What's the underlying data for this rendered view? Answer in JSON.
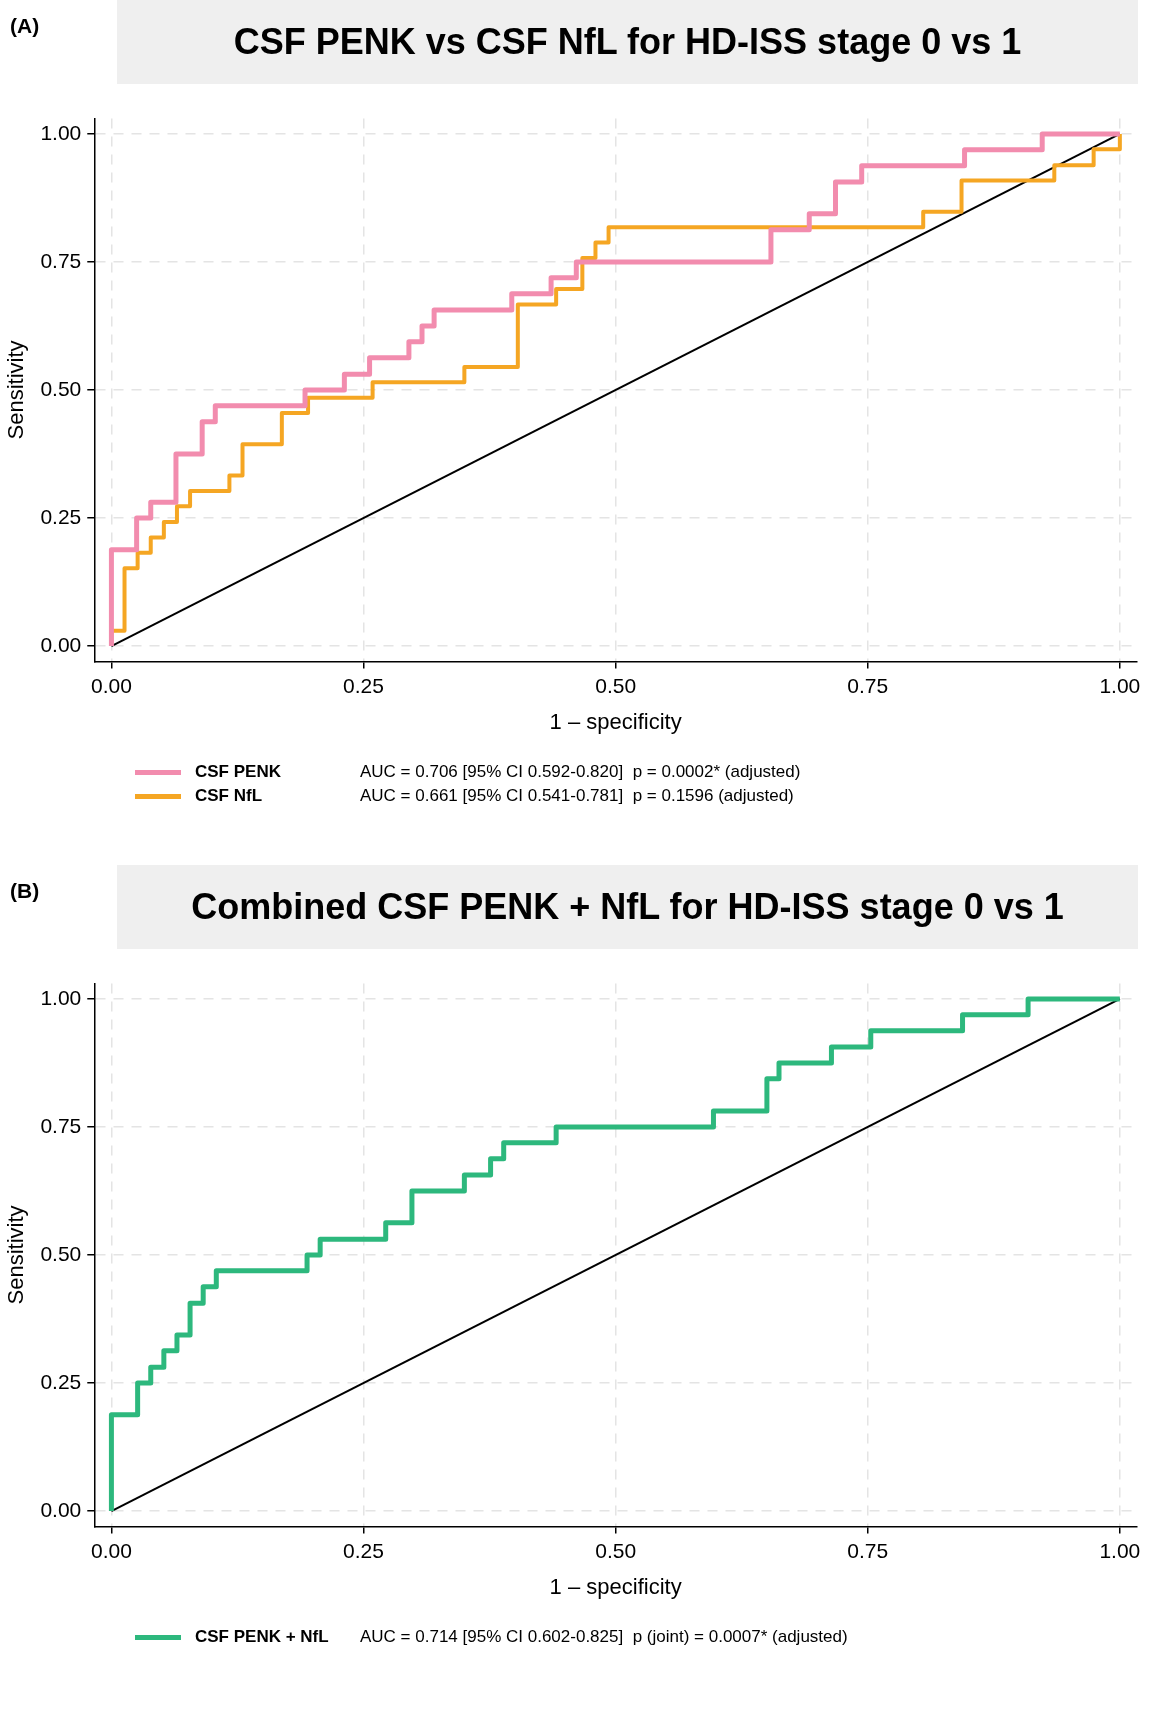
{
  "chart_data": [
    {
      "type": "step",
      "title": "CSF PENK vs CSF NfL for HD-ISS stage 0 vs 1",
      "xlabel": "1 – specificity",
      "ylabel": "Sensitivity",
      "annotations": [
        "(A)",
        "AUC = 0.706 [95% CI 0.592-0.820]  p = 0.0002* (adjusted)",
        "AUC = 0.661 [95% CI 0.541-0.781]  p = 0.1596 (adjusted)"
      ],
      "xlim": [
        -0.017,
        1.017
      ],
      "ylim": [
        -0.03,
        1.03
      ],
      "xticks": [
        {
          "value": 0,
          "label": "0.00"
        },
        {
          "value": 0.25,
          "label": "0.25"
        },
        {
          "value": 0.5,
          "label": "0.50"
        },
        {
          "value": 0.75,
          "label": "0.75"
        },
        {
          "value": 1,
          "label": "1.00"
        }
      ],
      "yticks": [
        {
          "value": 0,
          "label": "0.00"
        },
        {
          "value": 0.25,
          "label": "0.25"
        },
        {
          "value": 0.5,
          "label": "0.50"
        },
        {
          "value": 0.75,
          "label": "0.75"
        },
        {
          "value": 1,
          "label": "1.00"
        }
      ],
      "grid": true,
      "legend": "bottom",
      "marker": "none",
      "series": [
        {
          "name": "CSF PENK",
          "color": "#f28cae",
          "x": [
            0,
            0,
            0.025,
            0.039,
            0.064,
            0.09,
            0.103,
            0.192,
            0.231,
            0.256,
            0.295,
            0.308,
            0.32,
            0.397,
            0.436,
            0.461,
            0.654,
            0.692,
            0.718,
            0.744,
            0.846,
            0.923,
            1
          ],
          "values": [
            0,
            0.188,
            0.25,
            0.281,
            0.375,
            0.438,
            0.469,
            0.5,
            0.531,
            0.563,
            0.594,
            0.625,
            0.656,
            0.688,
            0.719,
            0.75,
            0.813,
            0.844,
            0.906,
            0.938,
            0.969,
            1,
            1
          ]
        },
        {
          "name": "CSF NfL",
          "color": "#f5a623",
          "x": [
            0,
            0,
            0.013,
            0.026,
            0.039,
            0.052,
            0.065,
            0.078,
            0.117,
            0.13,
            0.169,
            0.195,
            0.259,
            0.35,
            0.403,
            0.441,
            0.467,
            0.48,
            0.493,
            0.805,
            0.843,
            0.935,
            0.974,
            1,
            1
          ],
          "values": [
            0,
            0.03,
            0.152,
            0.182,
            0.212,
            0.242,
            0.273,
            0.303,
            0.333,
            0.394,
            0.455,
            0.485,
            0.515,
            0.545,
            0.667,
            0.697,
            0.758,
            0.788,
            0.818,
            0.848,
            0.909,
            0.939,
            0.97,
            0.97,
            1
          ]
        },
        {
          "type": "line",
          "color": "#000000",
          "x": [
            0,
            1
          ],
          "values": [
            0,
            1
          ]
        }
      ]
    },
    {
      "type": "step",
      "title": "Combined CSF PENK + NfL for HD-ISS stage 0 vs 1",
      "xlabel": "1 – specificity",
      "ylabel": "Sensitivity",
      "annotations": [
        "(B)",
        "AUC = 0.714 [95% CI 0.602-0.825]  p (joint) = 0.0007* (adjusted)"
      ],
      "xlim": [
        -0.017,
        1.017
      ],
      "ylim": [
        -0.03,
        1.03
      ],
      "xticks": [
        {
          "value": 0,
          "label": "0.00"
        },
        {
          "value": 0.25,
          "label": "0.25"
        },
        {
          "value": 0.5,
          "label": "0.50"
        },
        {
          "value": 0.75,
          "label": "0.75"
        },
        {
          "value": 1,
          "label": "1.00"
        }
      ],
      "yticks": [
        {
          "value": 0,
          "label": "0.00"
        },
        {
          "value": 0.25,
          "label": "0.25"
        },
        {
          "value": 0.5,
          "label": "0.50"
        },
        {
          "value": 0.75,
          "label": "0.75"
        },
        {
          "value": 1,
          "label": "1.00"
        }
      ],
      "grid": true,
      "legend": "bottom",
      "marker": "none",
      "series": [
        {
          "name": "CSF PENK + NfL",
          "color": "#2db87d",
          "x": [
            0,
            0,
            0.026,
            0.039,
            0.052,
            0.065,
            0.078,
            0.091,
            0.104,
            0.194,
            0.207,
            0.272,
            0.298,
            0.35,
            0.376,
            0.389,
            0.441,
            0.597,
            0.65,
            0.662,
            0.714,
            0.753,
            0.844,
            0.909,
            1
          ],
          "values": [
            0,
            0.188,
            0.25,
            0.281,
            0.313,
            0.344,
            0.406,
            0.438,
            0.469,
            0.5,
            0.531,
            0.563,
            0.625,
            0.656,
            0.688,
            0.719,
            0.75,
            0.781,
            0.844,
            0.875,
            0.906,
            0.938,
            0.969,
            1,
            1
          ]
        },
        {
          "type": "line",
          "color": "#000000",
          "x": [
            0,
            1
          ],
          "values": [
            0,
            1
          ]
        }
      ]
    }
  ]
}
